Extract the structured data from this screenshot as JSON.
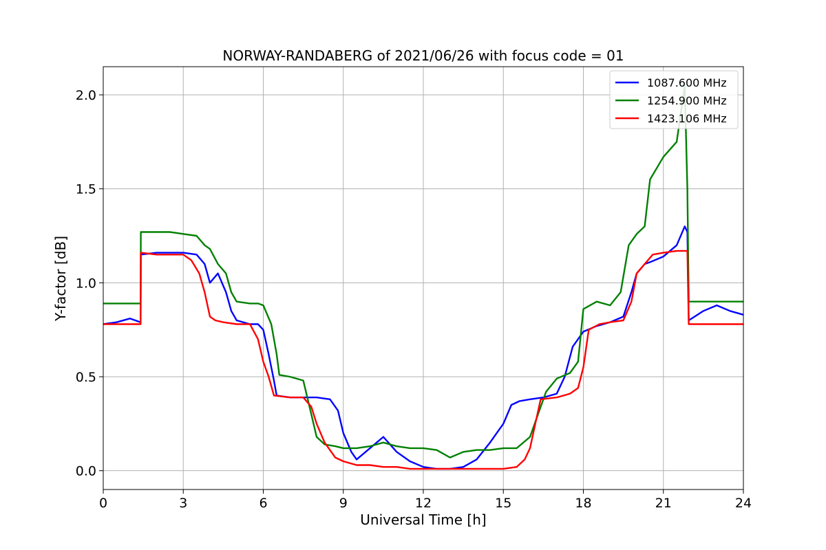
{
  "chart_data": {
    "type": "line",
    "title": "NORWAY-RANDABERG of 2021/06/26 with focus code = 01",
    "xlabel": "Universal Time [h]",
    "ylabel": "Y-factor [dB]",
    "xlim": [
      0,
      24
    ],
    "ylim": [
      -0.1,
      2.15
    ],
    "xticks": [
      0,
      3,
      6,
      9,
      12,
      15,
      18,
      21,
      24
    ],
    "yticks": [
      0.0,
      0.5,
      1.0,
      1.5,
      2.0
    ],
    "xtick_labels": [
      "0",
      "3",
      "6",
      "9",
      "12",
      "15",
      "18",
      "21",
      "24"
    ],
    "ytick_labels": [
      "0.0",
      "0.5",
      "1.0",
      "1.5",
      "2.0"
    ],
    "grid": true,
    "legend_position": "top-right",
    "series": [
      {
        "name": "1087.600 MHz",
        "color": "#0000ff",
        "points": [
          [
            0,
            0.78
          ],
          [
            0.5,
            0.79
          ],
          [
            1.0,
            0.81
          ],
          [
            1.4,
            0.79
          ],
          [
            1.41,
            1.15
          ],
          [
            2.0,
            1.16
          ],
          [
            2.5,
            1.16
          ],
          [
            3.0,
            1.16
          ],
          [
            3.5,
            1.15
          ],
          [
            3.8,
            1.1
          ],
          [
            4.0,
            1.0
          ],
          [
            4.3,
            1.05
          ],
          [
            4.6,
            0.95
          ],
          [
            4.8,
            0.85
          ],
          [
            5.0,
            0.8
          ],
          [
            5.5,
            0.78
          ],
          [
            5.8,
            0.78
          ],
          [
            6.0,
            0.75
          ],
          [
            6.2,
            0.62
          ],
          [
            6.4,
            0.48
          ],
          [
            6.5,
            0.4
          ],
          [
            7.0,
            0.39
          ],
          [
            7.5,
            0.39
          ],
          [
            8.0,
            0.39
          ],
          [
            8.5,
            0.38
          ],
          [
            8.8,
            0.32
          ],
          [
            9.0,
            0.2
          ],
          [
            9.3,
            0.1
          ],
          [
            9.5,
            0.06
          ],
          [
            10.0,
            0.12
          ],
          [
            10.5,
            0.18
          ],
          [
            11.0,
            0.1
          ],
          [
            11.5,
            0.05
          ],
          [
            12.0,
            0.02
          ],
          [
            12.5,
            0.01
          ],
          [
            13.0,
            0.01
          ],
          [
            13.5,
            0.02
          ],
          [
            14.0,
            0.06
          ],
          [
            14.5,
            0.15
          ],
          [
            15.0,
            0.25
          ],
          [
            15.3,
            0.35
          ],
          [
            15.6,
            0.37
          ],
          [
            16.0,
            0.38
          ],
          [
            16.5,
            0.39
          ],
          [
            17.0,
            0.41
          ],
          [
            17.3,
            0.5
          ],
          [
            17.6,
            0.66
          ],
          [
            18.0,
            0.74
          ],
          [
            18.5,
            0.77
          ],
          [
            19.0,
            0.79
          ],
          [
            19.5,
            0.82
          ],
          [
            19.8,
            0.95
          ],
          [
            20.0,
            1.05
          ],
          [
            20.3,
            1.1
          ],
          [
            20.5,
            1.11
          ],
          [
            21.0,
            1.14
          ],
          [
            21.5,
            1.2
          ],
          [
            21.8,
            1.3
          ],
          [
            21.9,
            1.27
          ],
          [
            21.95,
            0.8
          ],
          [
            22.5,
            0.85
          ],
          [
            23.0,
            0.88
          ],
          [
            23.5,
            0.85
          ],
          [
            24.0,
            0.83
          ]
        ]
      },
      {
        "name": "1254.900 MHz",
        "color": "#008000",
        "points": [
          [
            0,
            0.89
          ],
          [
            0.5,
            0.89
          ],
          [
            1.0,
            0.89
          ],
          [
            1.4,
            0.89
          ],
          [
            1.41,
            1.27
          ],
          [
            2.0,
            1.27
          ],
          [
            2.5,
            1.27
          ],
          [
            3.0,
            1.26
          ],
          [
            3.5,
            1.25
          ],
          [
            3.8,
            1.2
          ],
          [
            4.0,
            1.18
          ],
          [
            4.3,
            1.1
          ],
          [
            4.6,
            1.05
          ],
          [
            4.8,
            0.95
          ],
          [
            5.0,
            0.9
          ],
          [
            5.5,
            0.89
          ],
          [
            5.8,
            0.89
          ],
          [
            6.0,
            0.88
          ],
          [
            6.3,
            0.78
          ],
          [
            6.5,
            0.62
          ],
          [
            6.6,
            0.51
          ],
          [
            7.0,
            0.5
          ],
          [
            7.5,
            0.48
          ],
          [
            7.8,
            0.3
          ],
          [
            8.0,
            0.18
          ],
          [
            8.3,
            0.14
          ],
          [
            8.7,
            0.13
          ],
          [
            9.0,
            0.12
          ],
          [
            9.5,
            0.12
          ],
          [
            10.0,
            0.13
          ],
          [
            10.5,
            0.15
          ],
          [
            11.0,
            0.13
          ],
          [
            11.5,
            0.12
          ],
          [
            12.0,
            0.12
          ],
          [
            12.5,
            0.11
          ],
          [
            13.0,
            0.07
          ],
          [
            13.5,
            0.1
          ],
          [
            14.0,
            0.11
          ],
          [
            14.5,
            0.11
          ],
          [
            15.0,
            0.12
          ],
          [
            15.5,
            0.12
          ],
          [
            16.0,
            0.18
          ],
          [
            16.3,
            0.3
          ],
          [
            16.6,
            0.42
          ],
          [
            17.0,
            0.49
          ],
          [
            17.5,
            0.52
          ],
          [
            17.8,
            0.58
          ],
          [
            18.0,
            0.86
          ],
          [
            18.5,
            0.9
          ],
          [
            19.0,
            0.88
          ],
          [
            19.4,
            0.95
          ],
          [
            19.7,
            1.2
          ],
          [
            20.0,
            1.26
          ],
          [
            20.3,
            1.3
          ],
          [
            20.5,
            1.55
          ],
          [
            21.0,
            1.67
          ],
          [
            21.5,
            1.75
          ],
          [
            21.8,
            2.05
          ],
          [
            21.9,
            1.5
          ],
          [
            21.95,
            0.9
          ],
          [
            22.5,
            0.9
          ],
          [
            23.0,
            0.9
          ],
          [
            23.5,
            0.9
          ],
          [
            24.0,
            0.9
          ]
        ]
      },
      {
        "name": "1423.106 MHz",
        "color": "#ff0000",
        "points": [
          [
            0,
            0.78
          ],
          [
            0.5,
            0.78
          ],
          [
            1.0,
            0.78
          ],
          [
            1.4,
            0.78
          ],
          [
            1.41,
            1.16
          ],
          [
            2.0,
            1.15
          ],
          [
            2.5,
            1.15
          ],
          [
            3.0,
            1.15
          ],
          [
            3.3,
            1.12
          ],
          [
            3.6,
            1.05
          ],
          [
            3.8,
            0.95
          ],
          [
            4.0,
            0.82
          ],
          [
            4.2,
            0.8
          ],
          [
            4.5,
            0.79
          ],
          [
            5.0,
            0.78
          ],
          [
            5.5,
            0.78
          ],
          [
            5.8,
            0.7
          ],
          [
            6.0,
            0.58
          ],
          [
            6.2,
            0.5
          ],
          [
            6.4,
            0.4
          ],
          [
            7.0,
            0.39
          ],
          [
            7.5,
            0.39
          ],
          [
            7.8,
            0.34
          ],
          [
            8.0,
            0.25
          ],
          [
            8.3,
            0.15
          ],
          [
            8.7,
            0.07
          ],
          [
            9.0,
            0.05
          ],
          [
            9.5,
            0.03
          ],
          [
            10.0,
            0.03
          ],
          [
            10.5,
            0.02
          ],
          [
            11.0,
            0.02
          ],
          [
            11.5,
            0.01
          ],
          [
            12.0,
            0.01
          ],
          [
            12.5,
            0.01
          ],
          [
            13.0,
            0.01
          ],
          [
            13.5,
            0.01
          ],
          [
            14.0,
            0.01
          ],
          [
            14.5,
            0.01
          ],
          [
            15.0,
            0.01
          ],
          [
            15.5,
            0.02
          ],
          [
            15.8,
            0.06
          ],
          [
            16.0,
            0.12
          ],
          [
            16.2,
            0.25
          ],
          [
            16.4,
            0.38
          ],
          [
            17.0,
            0.39
          ],
          [
            17.5,
            0.41
          ],
          [
            17.8,
            0.44
          ],
          [
            18.0,
            0.55
          ],
          [
            18.2,
            0.75
          ],
          [
            18.6,
            0.78
          ],
          [
            19.0,
            0.79
          ],
          [
            19.5,
            0.8
          ],
          [
            19.8,
            0.9
          ],
          [
            20.0,
            1.05
          ],
          [
            20.3,
            1.1
          ],
          [
            20.6,
            1.15
          ],
          [
            21.0,
            1.16
          ],
          [
            21.5,
            1.17
          ],
          [
            21.9,
            1.17
          ],
          [
            21.95,
            0.78
          ],
          [
            22.5,
            0.78
          ],
          [
            23.0,
            0.78
          ],
          [
            23.5,
            0.78
          ],
          [
            24.0,
            0.78
          ]
        ]
      }
    ]
  }
}
